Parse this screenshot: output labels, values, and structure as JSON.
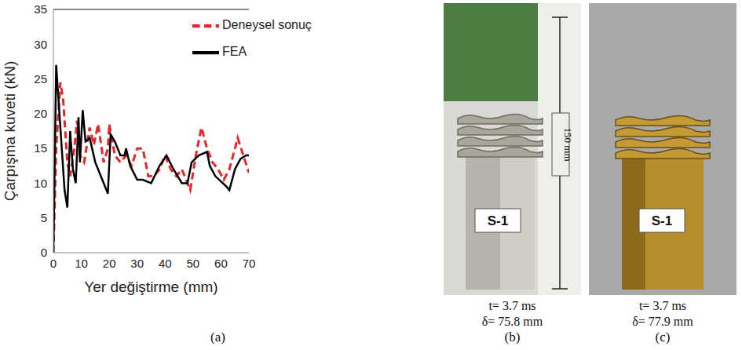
{
  "chart_data": {
    "type": "line",
    "x_label": "Yer değiştirme (mm)",
    "y_label": "Çarpışma kuveti (kN)",
    "xlim": [
      0,
      70
    ],
    "xticks": [
      0,
      10,
      20,
      30,
      40,
      50,
      60,
      70
    ],
    "ylim": [
      0,
      35
    ],
    "yticks": [
      0,
      5,
      10,
      15,
      20,
      25,
      30,
      35
    ],
    "grid": false,
    "legend": "upper right",
    "series": [
      {
        "name": "Deneysel sonuç",
        "color": "#e8262a",
        "line_style": "dashed",
        "x": [
          0,
          1,
          2.5,
          3.5,
          5,
          6,
          7.5,
          8.5,
          9.5,
          11,
          13,
          14.5,
          16,
          18,
          19.5,
          20,
          22,
          24,
          26,
          28,
          30,
          32,
          34,
          36,
          38,
          40,
          42,
          44,
          46,
          48,
          49,
          51,
          53,
          55,
          57,
          59,
          61,
          63,
          65,
          66,
          68,
          70
        ],
        "values": [
          0,
          15,
          24.5,
          22,
          13,
          11,
          15,
          19,
          14,
          13,
          18,
          15.5,
          18.5,
          13,
          15,
          18.5,
          14,
          13,
          14,
          12.5,
          15,
          15,
          11,
          11,
          12,
          14,
          12,
          11,
          12,
          10,
          9,
          14,
          18,
          15,
          13,
          12,
          10.5,
          12,
          15,
          16.5,
          14,
          11.5
        ]
      },
      {
        "name": "FEA",
        "color": "#000000",
        "line_style": "solid",
        "x": [
          0,
          1,
          2.5,
          4,
          5,
          6,
          7,
          8,
          9,
          9.5,
          10.5,
          11.5,
          13,
          15,
          17,
          19,
          19.5,
          20.5,
          22,
          24,
          25.5,
          26,
          27.5,
          30,
          32,
          35,
          38,
          40.5,
          43,
          46,
          48,
          49.5,
          52,
          55,
          56,
          58,
          62,
          63,
          65,
          67,
          69,
          70
        ],
        "values": [
          0,
          27,
          18,
          9,
          6.5,
          17.5,
          12,
          10,
          19.5,
          13,
          20.5,
          16,
          16.5,
          13,
          11,
          9,
          8.5,
          17,
          16,
          14,
          14,
          15,
          12.5,
          10.5,
          10.5,
          10,
          12.5,
          14,
          12,
          10,
          10,
          13,
          14,
          14.5,
          12.5,
          11,
          9.5,
          9,
          12,
          13.5,
          14,
          14
        ]
      }
    ]
  },
  "panel_label": "(a)",
  "panels": [
    {
      "label": "(b)",
      "specimen": "S-1",
      "dimension": "150 mm",
      "time": "t= 3.7 ms",
      "displacement": "δ= 75.8 mm"
    },
    {
      "label": "(c)",
      "specimen": "S-1",
      "time": "t= 3.7 ms",
      "displacement": "δ= 77.9 mm"
    }
  ]
}
